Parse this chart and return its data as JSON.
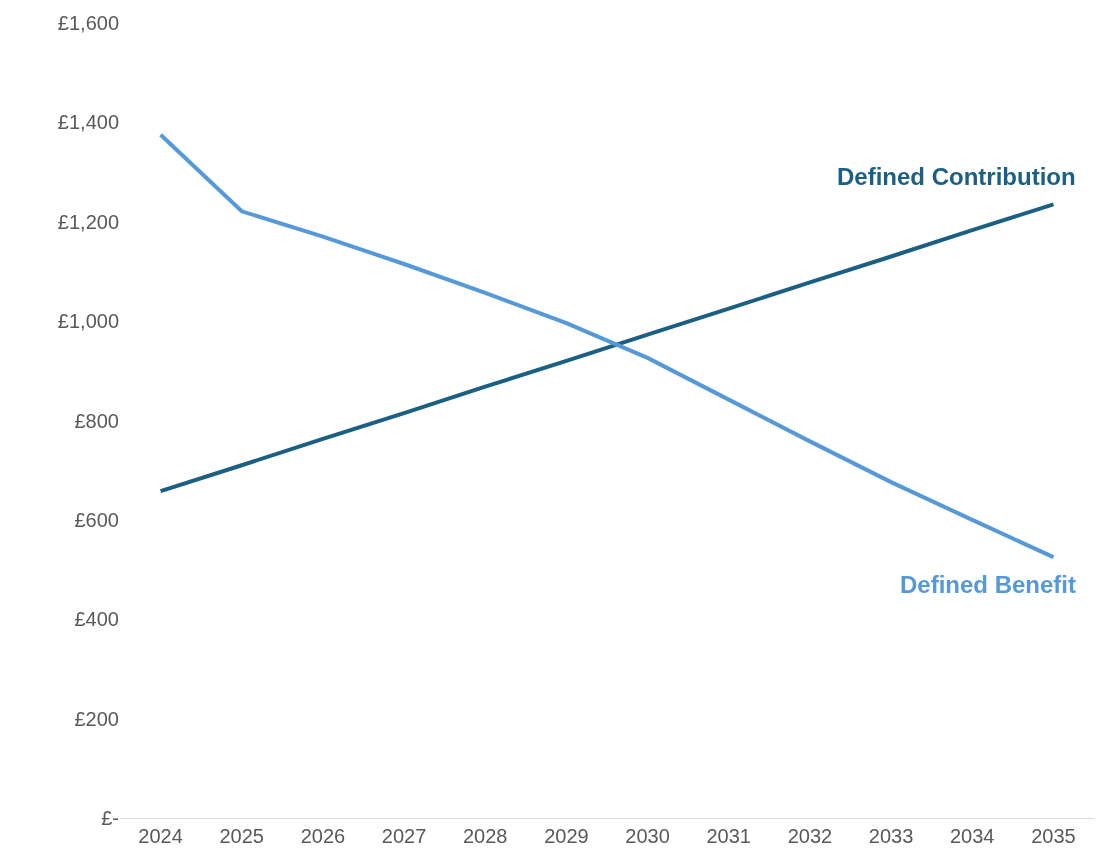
{
  "chart_data": {
    "type": "line",
    "categories": [
      "2024",
      "2025",
      "2026",
      "2027",
      "2028",
      "2029",
      "2030",
      "2031",
      "2032",
      "2033",
      "2034",
      "2035"
    ],
    "series": [
      {
        "name": "Defined Contribution",
        "color": "#1b5f82",
        "values": [
          658,
          710,
          763,
          815,
          868,
          920,
          973,
          1025,
          1078,
          1130,
          1183,
          1235
        ]
      },
      {
        "name": "Defined Benefit",
        "color": "#5599d8",
        "values": [
          1375,
          1221,
          1170,
          1115,
          1057,
          996,
          926,
          842,
          758,
          676,
          600,
          525
        ]
      }
    ],
    "ylim": [
      0,
      1600
    ],
    "yticks": [
      {
        "value": 0,
        "label": "£-"
      },
      {
        "value": 200,
        "label": "£200"
      },
      {
        "value": 400,
        "label": "£400"
      },
      {
        "value": 600,
        "label": "£600"
      },
      {
        "value": 800,
        "label": "£800"
      },
      {
        "value": 1000,
        "label": "£1,000"
      },
      {
        "value": 1200,
        "label": "£1,200"
      },
      {
        "value": 1400,
        "label": "£1,400"
      },
      {
        "value": 1600,
        "label": "£1,600"
      }
    ],
    "legend": false,
    "marker": "none",
    "line_style": "solid"
  }
}
